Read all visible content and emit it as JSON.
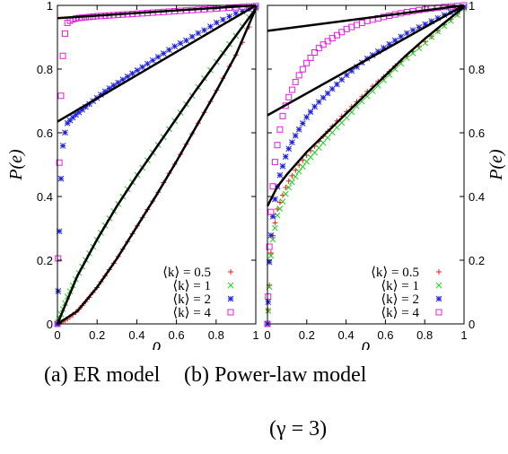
{
  "chart_data": [
    {
      "panel": "left",
      "type": "scatter",
      "xlabel": "ρ",
      "ylabel": "P(e)",
      "xlim": [
        0,
        1
      ],
      "ylim": [
        0,
        1
      ],
      "xticks": [
        "0",
        "0.2",
        "0.4",
        "0.6",
        "0.8",
        "1"
      ],
      "yticks": [
        "0",
        "0.2",
        "0.4",
        "0.6",
        "0.8",
        "1"
      ],
      "legend_position": "bottom-right",
      "series": [
        {
          "name": "⟨k⟩ = 0.5",
          "color": "#e8201e",
          "marker": "plus",
          "x": [
            0,
            0.05,
            0.1,
            0.15,
            0.2,
            0.25,
            0.3,
            0.35,
            0.4,
            0.45,
            0.5,
            0.55,
            0.6,
            0.65,
            0.7,
            0.75,
            0.8,
            0.85,
            0.9,
            0.95,
            1
          ],
          "y": [
            0,
            0.015,
            0.04,
            0.075,
            0.115,
            0.16,
            0.205,
            0.255,
            0.305,
            0.355,
            0.405,
            0.46,
            0.51,
            0.565,
            0.62,
            0.675,
            0.73,
            0.79,
            0.845,
            0.905,
            0.99
          ]
        },
        {
          "name": "⟨k⟩ = 1",
          "color": "#1fd01f",
          "marker": "cross",
          "x": [
            0,
            0.05,
            0.1,
            0.15,
            0.2,
            0.25,
            0.3,
            0.35,
            0.4,
            0.45,
            0.5,
            0.55,
            0.6,
            0.65,
            0.7,
            0.75,
            0.8,
            0.85,
            0.9,
            0.95,
            1
          ],
          "y": [
            0,
            0.085,
            0.15,
            0.21,
            0.265,
            0.32,
            0.37,
            0.42,
            0.465,
            0.51,
            0.555,
            0.6,
            0.645,
            0.69,
            0.735,
            0.78,
            0.82,
            0.865,
            0.905,
            0.95,
            0.99
          ]
        },
        {
          "name": "⟨k⟩ = 2",
          "color": "#1c1ee0",
          "marker": "asterisk",
          "x": [
            0,
            0.01,
            0.02,
            0.03,
            0.05,
            0.08,
            0.1,
            0.15,
            0.2,
            0.25,
            0.3,
            0.35,
            0.4,
            0.45,
            0.5,
            0.55,
            0.6,
            0.65,
            0.7,
            0.75,
            0.8,
            0.85,
            0.9,
            0.95,
            1
          ],
          "y": [
            0,
            0.3,
            0.5,
            0.58,
            0.63,
            0.65,
            0.66,
            0.685,
            0.71,
            0.735,
            0.755,
            0.775,
            0.795,
            0.815,
            0.835,
            0.855,
            0.875,
            0.89,
            0.91,
            0.925,
            0.945,
            0.96,
            0.975,
            0.985,
            0.995
          ]
        },
        {
          "name": "⟨k⟩ = 4",
          "color": "#e020e0",
          "marker": "square",
          "x": [
            0,
            0.005,
            0.01,
            0.015,
            0.02,
            0.03,
            0.04,
            0.05,
            0.07,
            0.1,
            0.15,
            0.2,
            0.3,
            0.4,
            0.5,
            0.6,
            0.7,
            0.8,
            0.9,
            1
          ],
          "y": [
            0,
            0.3,
            0.52,
            0.66,
            0.76,
            0.87,
            0.92,
            0.945,
            0.955,
            0.96,
            0.963,
            0.966,
            0.97,
            0.974,
            0.978,
            0.982,
            0.986,
            0.99,
            0.994,
            0.998
          ]
        }
      ],
      "fit_lines": [
        {
          "x": [
            0,
            1
          ],
          "y": [
            0.96,
            1.0
          ]
        },
        {
          "x": [
            0,
            1
          ],
          "y": [
            0.635,
            1.0
          ]
        },
        {
          "x": [
            0,
            0.1,
            0.2,
            0.3,
            0.4,
            0.5,
            0.6,
            0.7,
            0.8,
            0.9,
            1
          ],
          "y": [
            0,
            0.15,
            0.265,
            0.37,
            0.465,
            0.555,
            0.645,
            0.735,
            0.82,
            0.905,
            0.99
          ]
        },
        {
          "x": [
            0,
            0.1,
            0.2,
            0.3,
            0.4,
            0.5,
            0.6,
            0.7,
            0.8,
            0.9,
            1
          ],
          "y": [
            0,
            0.04,
            0.115,
            0.205,
            0.305,
            0.405,
            0.51,
            0.62,
            0.73,
            0.845,
            0.99
          ]
        }
      ]
    },
    {
      "panel": "right",
      "type": "scatter",
      "xlabel": "ρ",
      "ylabel": "P(e)",
      "xlim": [
        0,
        1
      ],
      "ylim": [
        0,
        1
      ],
      "xticks": [
        "0",
        "0.2",
        "0.4",
        "0.6",
        "0.8",
        "1"
      ],
      "yticks": [
        "0",
        "0.2",
        "0.4",
        "0.6",
        "0.8",
        "1"
      ],
      "legend_position": "bottom-right",
      "series": [
        {
          "name": "⟨k⟩ = 0.5",
          "color": "#e8201e",
          "marker": "plus",
          "x": [
            0,
            0.02,
            0.05,
            0.1,
            0.15,
            0.2,
            0.25,
            0.3,
            0.35,
            0.4,
            0.45,
            0.5,
            0.55,
            0.6,
            0.65,
            0.7,
            0.75,
            0.8,
            0.85,
            0.9,
            0.95,
            1
          ],
          "y": [
            0,
            0.25,
            0.36,
            0.44,
            0.49,
            0.53,
            0.565,
            0.6,
            0.635,
            0.665,
            0.695,
            0.725,
            0.755,
            0.78,
            0.81,
            0.835,
            0.86,
            0.885,
            0.91,
            0.94,
            0.965,
            0.99
          ]
        },
        {
          "name": "⟨k⟩ = 1",
          "color": "#1fd01f",
          "marker": "cross",
          "x": [
            0,
            0.02,
            0.05,
            0.1,
            0.15,
            0.2,
            0.25,
            0.3,
            0.35,
            0.4,
            0.45,
            0.5,
            0.55,
            0.6,
            0.65,
            0.7,
            0.75,
            0.8,
            0.85,
            0.9,
            0.95,
            1
          ],
          "y": [
            0,
            0.24,
            0.34,
            0.42,
            0.47,
            0.51,
            0.545,
            0.58,
            0.615,
            0.645,
            0.68,
            0.71,
            0.74,
            0.77,
            0.8,
            0.83,
            0.855,
            0.88,
            0.91,
            0.935,
            0.96,
            0.99
          ]
        },
        {
          "name": "⟨k⟩ = 2",
          "color": "#1c1ee0",
          "marker": "asterisk",
          "x": [
            0,
            0.01,
            0.02,
            0.04,
            0.06,
            0.08,
            0.1,
            0.15,
            0.2,
            0.25,
            0.3,
            0.35,
            0.4,
            0.5,
            0.6,
            0.7,
            0.8,
            0.9,
            1
          ],
          "y": [
            0,
            0.2,
            0.3,
            0.4,
            0.46,
            0.5,
            0.54,
            0.6,
            0.65,
            0.69,
            0.72,
            0.75,
            0.78,
            0.83,
            0.87,
            0.91,
            0.94,
            0.97,
            0.995
          ]
        },
        {
          "name": "⟨k⟩ = 4",
          "color": "#e020e0",
          "marker": "square",
          "x": [
            0,
            0.01,
            0.02,
            0.04,
            0.06,
            0.08,
            0.1,
            0.15,
            0.2,
            0.25,
            0.3,
            0.35,
            0.4,
            0.5,
            0.6,
            0.7,
            0.8,
            0.9,
            1
          ],
          "y": [
            0,
            0.25,
            0.38,
            0.52,
            0.6,
            0.66,
            0.7,
            0.77,
            0.82,
            0.86,
            0.885,
            0.905,
            0.925,
            0.95,
            0.965,
            0.978,
            0.988,
            0.995,
            1.0
          ]
        }
      ],
      "fit_lines": [
        {
          "x": [
            0,
            1
          ],
          "y": [
            0.92,
            1.0
          ]
        },
        {
          "x": [
            0,
            1
          ],
          "y": [
            0.655,
            1.0
          ]
        },
        {
          "x": [
            0,
            0.05,
            0.1,
            0.2,
            0.3,
            0.4,
            0.5,
            0.6,
            0.7,
            0.8,
            0.9,
            1
          ],
          "y": [
            0.37,
            0.43,
            0.47,
            0.54,
            0.6,
            0.66,
            0.72,
            0.78,
            0.84,
            0.895,
            0.945,
            0.995
          ]
        }
      ]
    }
  ],
  "captions": {
    "a": "(a) ER model",
    "b_line1": "(b) Power-law model",
    "b_line2": "(γ = 3)"
  }
}
